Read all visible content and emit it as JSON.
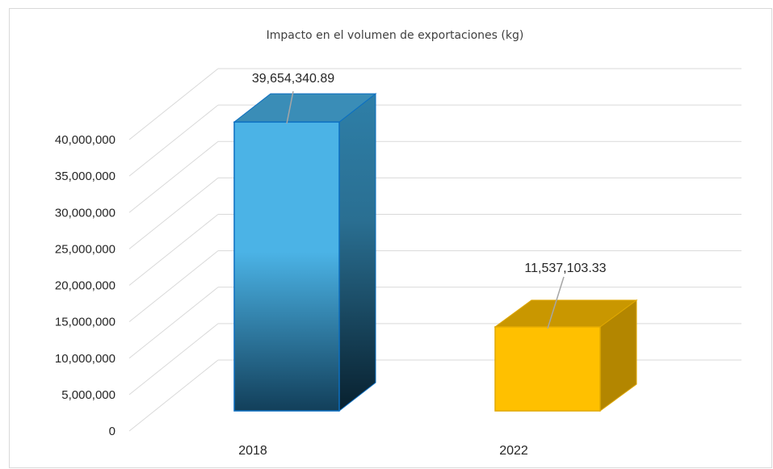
{
  "chart_data": {
    "type": "bar",
    "title": "Impacto en el volumen de exportaciones (kg)",
    "xlabel": "",
    "ylabel": "",
    "categories": [
      "2018",
      "2022"
    ],
    "values": [
      39654340.89,
      11537103.33
    ],
    "data_labels": [
      "39,654,340.89",
      "11,537,103.33"
    ],
    "ylim": [
      0,
      40000000
    ],
    "yticks": [
      "0",
      "5,000,000",
      "10,000,000",
      "15,000,000",
      "20,000,000",
      "25,000,000",
      "30,000,000",
      "35,000,000",
      "40,000,000"
    ],
    "grid": true,
    "style": "3d-column",
    "colors": [
      "#4BB3E6",
      "#FFC000"
    ]
  }
}
